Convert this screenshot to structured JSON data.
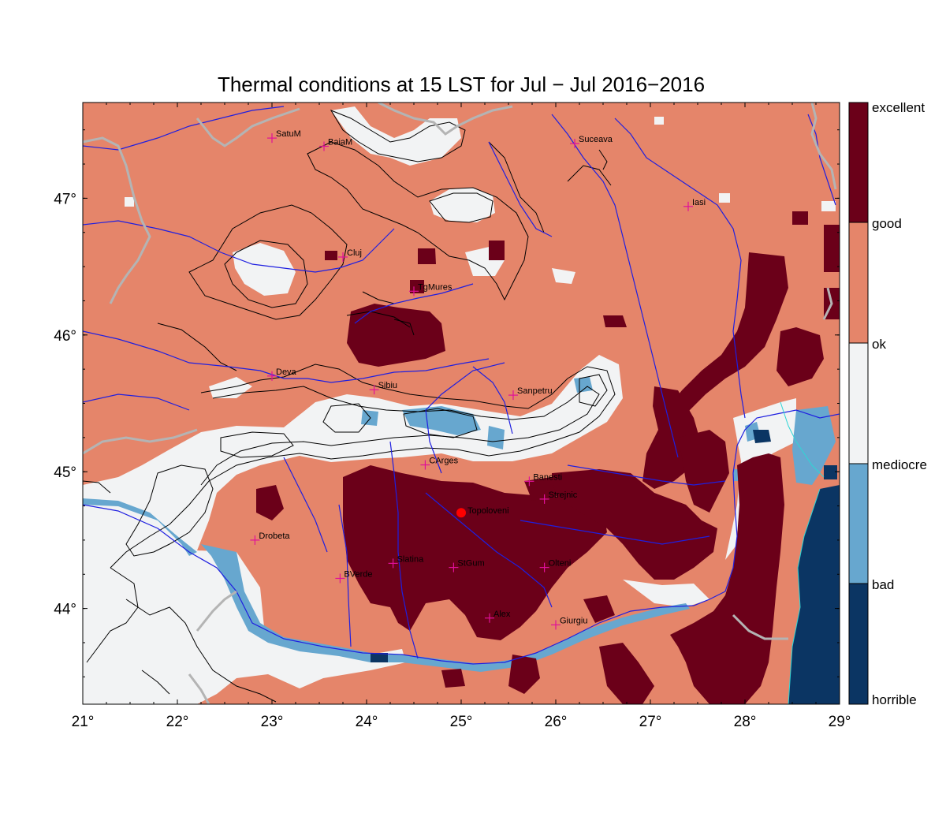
{
  "title": "Thermal conditions at 15 LST for Jul − Jul  2016−2016",
  "map": {
    "lon_range": [
      21,
      29
    ],
    "lat_range": [
      43.3,
      47.7
    ],
    "lon_ticks": [
      "21°",
      "22°",
      "23°",
      "24°",
      "25°",
      "26°",
      "27°",
      "28°",
      "29°"
    ],
    "lat_ticks": [
      "44°",
      "45°",
      "46°",
      "47°"
    ],
    "lon_tick_values": [
      21,
      22,
      23,
      24,
      25,
      26,
      27,
      28,
      29
    ],
    "lat_tick_values": [
      44,
      45,
      46,
      47
    ]
  },
  "colors": {
    "horrible": "#0b3563",
    "bad": "#67a7cf",
    "mediocre": "#f2f3f4",
    "ok": "#e5856a",
    "good": "#6b0019",
    "river": "#1f1fe0",
    "border": "#b4b4b4",
    "marker": "#e0109a",
    "highlight": "#ff0000"
  },
  "legend": {
    "labels": [
      "excellent",
      "good",
      "ok",
      "mediocre",
      "bad",
      "horrible"
    ]
  },
  "cities": [
    {
      "name": "SatuM",
      "lon": 23.0,
      "lat": 47.44
    },
    {
      "name": "BaiaM",
      "lon": 23.55,
      "lat": 47.38
    },
    {
      "name": "Suceava",
      "lon": 26.2,
      "lat": 47.4
    },
    {
      "name": "Iasi",
      "lon": 27.4,
      "lat": 46.94
    },
    {
      "name": "Cluj",
      "lon": 23.75,
      "lat": 46.57
    },
    {
      "name": "TgMures",
      "lon": 24.5,
      "lat": 46.32
    },
    {
      "name": "Deva",
      "lon": 23.0,
      "lat": 45.7
    },
    {
      "name": "Sibiu",
      "lon": 24.08,
      "lat": 45.6
    },
    {
      "name": "Sanpetru",
      "lon": 25.55,
      "lat": 45.56
    },
    {
      "name": "CArges",
      "lon": 24.62,
      "lat": 45.05
    },
    {
      "name": "Banesti",
      "lon": 25.72,
      "lat": 44.93
    },
    {
      "name": "Strejnic",
      "lon": 25.88,
      "lat": 44.8
    },
    {
      "name": "Drobeta",
      "lon": 22.82,
      "lat": 44.5
    },
    {
      "name": "Slatina",
      "lon": 24.28,
      "lat": 44.33
    },
    {
      "name": "StGum",
      "lon": 24.92,
      "lat": 44.3
    },
    {
      "name": "Olteni",
      "lon": 25.88,
      "lat": 44.3
    },
    {
      "name": "BVerde",
      "lon": 23.72,
      "lat": 44.22
    },
    {
      "name": "Alex",
      "lon": 25.3,
      "lat": 43.93
    },
    {
      "name": "Giurgiu",
      "lon": 26.0,
      "lat": 43.88
    }
  ],
  "highlight_station": {
    "name": "Topoloveni",
    "lon": 25.0,
    "lat": 44.7
  }
}
